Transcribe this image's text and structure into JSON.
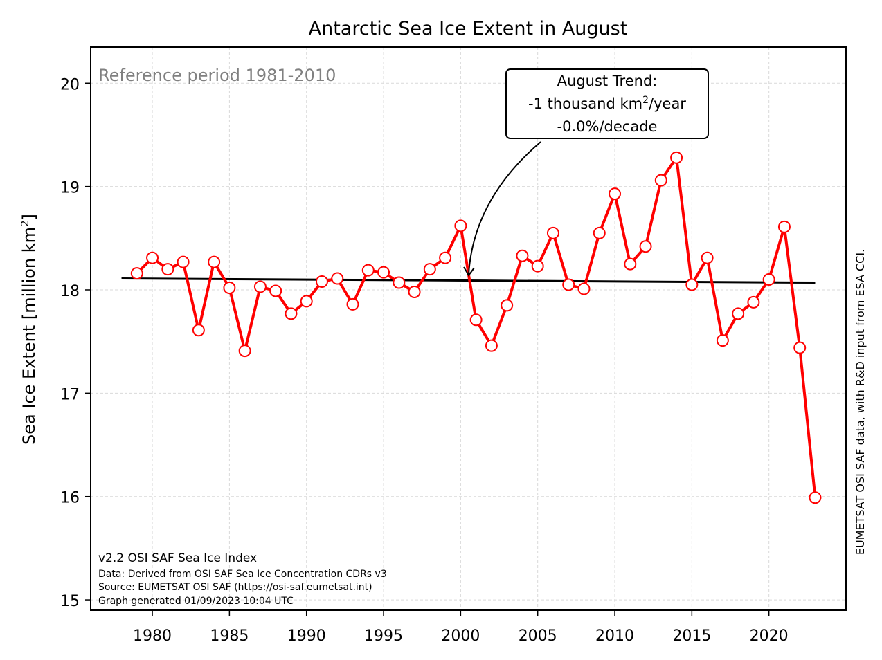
{
  "chart_data": {
    "type": "line",
    "title": "Antarctic Sea Ice Extent in August",
    "ylabel": "Sea Ice Extent [million km²]",
    "ylabel_main": "Sea Ice Extent [million km",
    "ylabel_sup": "2",
    "ylabel_end": "]",
    "xlabel": "",
    "xlim": [
      1976,
      2025
    ],
    "ylim": [
      14.9,
      20.35
    ],
    "x_ticks": [
      1980,
      1985,
      1990,
      1995,
      2000,
      2005,
      2010,
      2015,
      2020
    ],
    "y_ticks": [
      15,
      16,
      17,
      18,
      19,
      20
    ],
    "grid": true,
    "series": [
      {
        "color": "#ff0000",
        "marker": "circle-open",
        "x": [
          1979,
          1980,
          1981,
          1982,
          1983,
          1984,
          1985,
          1986,
          1987,
          1988,
          1989,
          1990,
          1991,
          1992,
          1993,
          1994,
          1995,
          1996,
          1997,
          1998,
          1999,
          2000,
          2001,
          2002,
          2003,
          2004,
          2005,
          2006,
          2007,
          2008,
          2009,
          2010,
          2011,
          2012,
          2013,
          2014,
          2015,
          2016,
          2017,
          2018,
          2019,
          2020,
          2021,
          2022,
          2023
        ],
        "values": [
          18.16,
          18.31,
          18.2,
          18.27,
          17.61,
          18.27,
          18.02,
          17.41,
          18.03,
          17.99,
          17.77,
          17.89,
          18.08,
          18.11,
          17.86,
          18.19,
          18.17,
          18.07,
          17.98,
          18.2,
          18.31,
          18.62,
          17.71,
          17.46,
          17.85,
          18.33,
          18.23,
          18.55,
          18.05,
          18.01,
          18.55,
          18.93,
          18.25,
          18.42,
          19.06,
          19.28,
          18.05,
          18.31,
          17.51,
          17.77,
          17.88,
          18.1,
          18.61,
          17.44,
          15.99
        ]
      }
    ],
    "trend_line": {
      "color": "#000000",
      "x": [
        1978,
        2023
      ],
      "values": [
        18.11,
        18.07
      ]
    },
    "annotations": {
      "reference_period": "Reference period 1981-2010",
      "trend_box": {
        "line1": "August Trend:",
        "line2_main": "-1 thousand km",
        "line2_sup": "2",
        "line2_end": "/year",
        "line3": "-0.0%/decade",
        "arrow_target": {
          "x": 2000.5,
          "y": 18.12
        }
      },
      "footer_lines": [
        "v2.2 OSI SAF Sea Ice Index",
        "Data: Derived from OSI SAF Sea Ice Concentration CDRs v3",
        "Source: EUMETSAT OSI SAF (https://osi-saf.eumetsat.int)",
        "Graph generated 01/09/2023 10:04 UTC"
      ],
      "side_credit": "EUMETSAT OSI SAF data, with R&D input from ESA CCI."
    },
    "colors": {
      "series": "#ff0000",
      "marker_fill": "#ffffff",
      "trend": "#000000",
      "reference_text": "#808080",
      "grid": "#d9d9d9"
    }
  }
}
